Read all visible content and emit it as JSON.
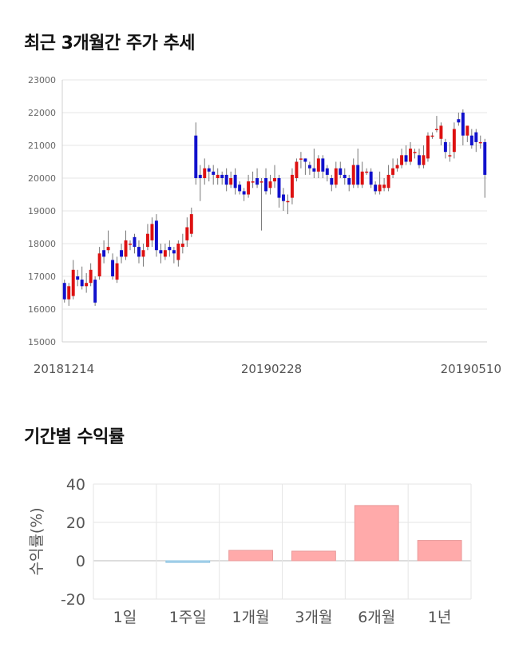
{
  "sections": {
    "price_title": "최근 3개월간 주가 추세",
    "returns_title": "기간별 수익률"
  },
  "chart_data": [
    {
      "type": "candlestick",
      "title": "최근 3개월간 주가 추세",
      "ylim": [
        15000,
        23000
      ],
      "yticks": [
        15000,
        16000,
        17000,
        18000,
        19000,
        20000,
        21000,
        22000,
        23000
      ],
      "ytick_labels": [
        "15000",
        "16000",
        "17000",
        "18000",
        "19000",
        "20000",
        "21000",
        "22000",
        "23000"
      ],
      "xtick_labels": [
        "20181214",
        "20190228",
        "20190510"
      ],
      "colors": {
        "up": "#dd1111",
        "down": "#1111cc"
      },
      "candles": [
        [
          16800,
          16300,
          16900,
          16200
        ],
        [
          16300,
          16700,
          16800,
          16100
        ],
        [
          16400,
          17200,
          17500,
          16300
        ],
        [
          17000,
          16900,
          17200,
          16700
        ],
        [
          16900,
          16700,
          17300,
          16600
        ],
        [
          16700,
          16800,
          17100,
          16500
        ],
        [
          16800,
          17200,
          17400,
          16700
        ],
        [
          16900,
          16200,
          17000,
          16100
        ],
        [
          17000,
          17700,
          17900,
          16900
        ],
        [
          17800,
          17600,
          18100,
          17400
        ],
        [
          17800,
          17900,
          18400,
          17700
        ],
        [
          17500,
          17000,
          17700,
          16900
        ],
        [
          16900,
          17400,
          17600,
          16800
        ],
        [
          17800,
          17600,
          18000,
          17400
        ],
        [
          17600,
          18100,
          18400,
          17500
        ],
        [
          18000,
          18000,
          18100,
          17800
        ],
        [
          18200,
          17900,
          18300,
          17700
        ],
        [
          17900,
          17600,
          18100,
          17400
        ],
        [
          17600,
          17800,
          18000,
          17300
        ],
        [
          17900,
          18300,
          18600,
          17800
        ],
        [
          18100,
          18600,
          18800,
          17900
        ],
        [
          18700,
          17800,
          18900,
          17600
        ],
        [
          17800,
          17700,
          18000,
          17400
        ],
        [
          17600,
          17800,
          18000,
          17500
        ],
        [
          17900,
          17800,
          18100,
          17600
        ],
        [
          17800,
          17700,
          17900,
          17400
        ],
        [
          17500,
          18000,
          18100,
          17300
        ],
        [
          17900,
          18000,
          18300,
          17700
        ],
        [
          18100,
          18500,
          18800,
          17900
        ],
        [
          18300,
          18900,
          19100,
          18200
        ],
        [
          21300,
          20000,
          21700,
          19800
        ],
        [
          20100,
          20000,
          20400,
          19300
        ],
        [
          20000,
          20300,
          20600,
          19800
        ],
        [
          20300,
          20200,
          20400,
          19900
        ],
        [
          20200,
          20100,
          20400,
          19800
        ],
        [
          20000,
          20100,
          20300,
          19800
        ],
        [
          20100,
          20000,
          20200,
          19800
        ],
        [
          20100,
          19800,
          20300,
          19600
        ],
        [
          19800,
          20000,
          20200,
          19700
        ],
        [
          20100,
          19700,
          20300,
          19500
        ],
        [
          19800,
          19600,
          19900,
          19500
        ],
        [
          19600,
          19500,
          19700,
          19300
        ],
        [
          19500,
          19900,
          20100,
          19400
        ],
        [
          19900,
          19900,
          20200,
          19700
        ],
        [
          20000,
          19800,
          20300,
          19700
        ],
        [
          19900,
          19900,
          20000,
          18400
        ],
        [
          20000,
          19600,
          20300,
          19500
        ],
        [
          19700,
          19900,
          20100,
          19500
        ],
        [
          19900,
          20000,
          20400,
          19700
        ],
        [
          20000,
          19400,
          20100,
          19100
        ],
        [
          19500,
          19300,
          19700,
          19000
        ],
        [
          19300,
          19300,
          19500,
          18900
        ],
        [
          19400,
          20100,
          20300,
          19200
        ],
        [
          20000,
          20500,
          20600,
          19900
        ],
        [
          20600,
          20600,
          20800,
          20300
        ],
        [
          20600,
          20500,
          20600,
          20100
        ],
        [
          20400,
          20300,
          20500,
          20100
        ],
        [
          20300,
          20200,
          20900,
          20000
        ],
        [
          20200,
          20600,
          20700,
          20000
        ],
        [
          20600,
          20200,
          20700,
          20000
        ],
        [
          20300,
          20100,
          20400,
          19900
        ],
        [
          20000,
          19800,
          20100,
          19600
        ],
        [
          19800,
          20300,
          20500,
          19700
        ],
        [
          20300,
          20100,
          20500,
          20000
        ],
        [
          20100,
          20000,
          20300,
          19800
        ],
        [
          20000,
          19800,
          20100,
          19600
        ],
        [
          19800,
          20400,
          20600,
          19700
        ],
        [
          20400,
          19800,
          20900,
          19700
        ],
        [
          19800,
          20200,
          20500,
          19700
        ],
        [
          20200,
          20200,
          20300,
          20100
        ],
        [
          20200,
          19800,
          20300,
          19700
        ],
        [
          19800,
          19600,
          19900,
          19500
        ],
        [
          19600,
          19800,
          20200,
          19500
        ],
        [
          19700,
          19800,
          20000,
          19600
        ],
        [
          19700,
          20100,
          20400,
          19600
        ],
        [
          20100,
          20300,
          20600,
          20000
        ],
        [
          20300,
          20400,
          20600,
          20200
        ],
        [
          20400,
          20700,
          20900,
          20300
        ],
        [
          20700,
          20500,
          21000,
          20400
        ],
        [
          20500,
          20900,
          21100,
          20400
        ],
        [
          20800,
          20800,
          20900,
          20600
        ],
        [
          20700,
          20400,
          20900,
          20300
        ],
        [
          20400,
          20700,
          21000,
          20300
        ],
        [
          20600,
          21300,
          21400,
          20500
        ],
        [
          21300,
          21300,
          21400,
          21200
        ],
        [
          21500,
          21500,
          21900,
          21400
        ],
        [
          21200,
          21600,
          21700,
          21000
        ],
        [
          21100,
          20800,
          21200,
          20600
        ],
        [
          20700,
          20700,
          21100,
          20500
        ],
        [
          20800,
          21500,
          21700,
          20600
        ],
        [
          21800,
          21700,
          22000,
          21600
        ],
        [
          22000,
          21300,
          22100,
          21000
        ],
        [
          21300,
          21600,
          21600,
          21100
        ],
        [
          21300,
          21000,
          21500,
          20900
        ],
        [
          21400,
          21100,
          21500,
          20800
        ],
        [
          21100,
          21100,
          21300,
          20900
        ],
        [
          21100,
          20100,
          21200,
          19400
        ]
      ]
    },
    {
      "type": "bar",
      "title": "기간별 수익률",
      "ylabel": "수익률(%)",
      "ylim": [
        -20,
        40
      ],
      "yticks": [
        -20,
        0,
        20,
        40
      ],
      "ytick_labels": [
        "-20",
        "0",
        "20",
        "40"
      ],
      "categories": [
        "1일",
        "1주일",
        "1개월",
        "3개월",
        "6개월",
        "1년"
      ],
      "values": [
        0.0,
        -0.9,
        5.4,
        5.0,
        28.8,
        10.6
      ],
      "colors": {
        "positive": "#ffaaaa",
        "negative": "#aad4ee"
      }
    }
  ]
}
